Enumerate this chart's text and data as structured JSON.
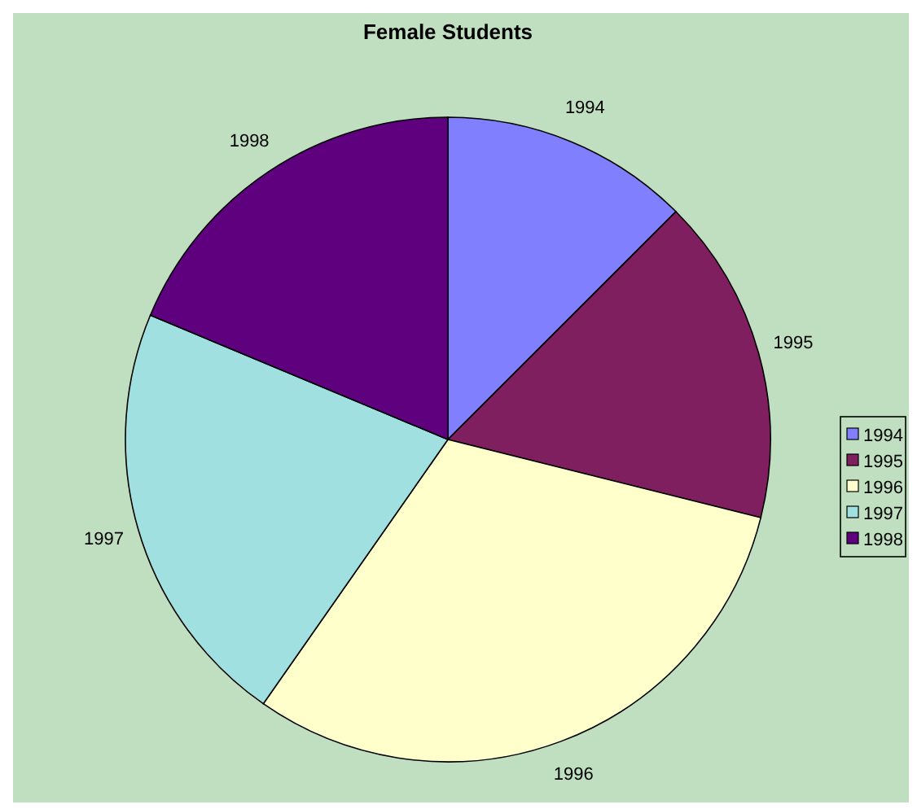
{
  "chart_data": {
    "type": "pie",
    "title": "Female Students",
    "categories": [
      "1994",
      "1995",
      "1996",
      "1997",
      "1998"
    ],
    "values": [
      12.5,
      16.4,
      30.8,
      21.6,
      18.7
    ],
    "colors": [
      "#8080ff",
      "#7f1f5f",
      "#ffffcc",
      "#a0e0e0",
      "#5f007f"
    ],
    "legend": "right"
  }
}
